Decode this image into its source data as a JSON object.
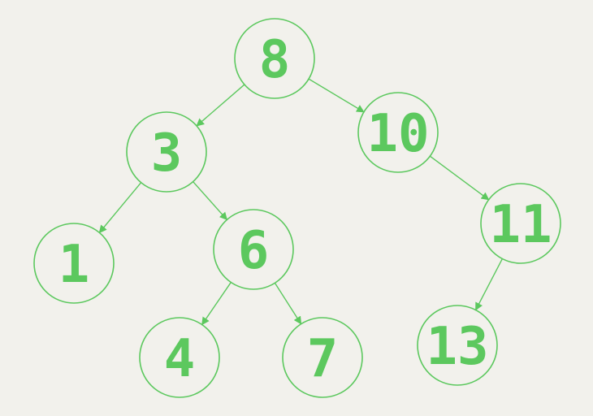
{
  "theme": {
    "background": "#f2f1ec",
    "accent": "#5cc85e"
  },
  "tree": {
    "nodes": [
      {
        "id": "n8",
        "label": "8"
      },
      {
        "id": "n3",
        "label": "3"
      },
      {
        "id": "n10",
        "label": "10"
      },
      {
        "id": "n1",
        "label": "1"
      },
      {
        "id": "n6",
        "label": "6"
      },
      {
        "id": "n11",
        "label": "11"
      },
      {
        "id": "n4",
        "label": "4"
      },
      {
        "id": "n7",
        "label": "7"
      },
      {
        "id": "n13",
        "label": "13"
      }
    ],
    "edges": [
      {
        "from": "n8",
        "to": "n3"
      },
      {
        "from": "n8",
        "to": "n10"
      },
      {
        "from": "n3",
        "to": "n1"
      },
      {
        "from": "n3",
        "to": "n6"
      },
      {
        "from": "n6",
        "to": "n4"
      },
      {
        "from": "n6",
        "to": "n7"
      },
      {
        "from": "n10",
        "to": "n11"
      },
      {
        "from": "n11",
        "to": "n13"
      }
    ]
  }
}
